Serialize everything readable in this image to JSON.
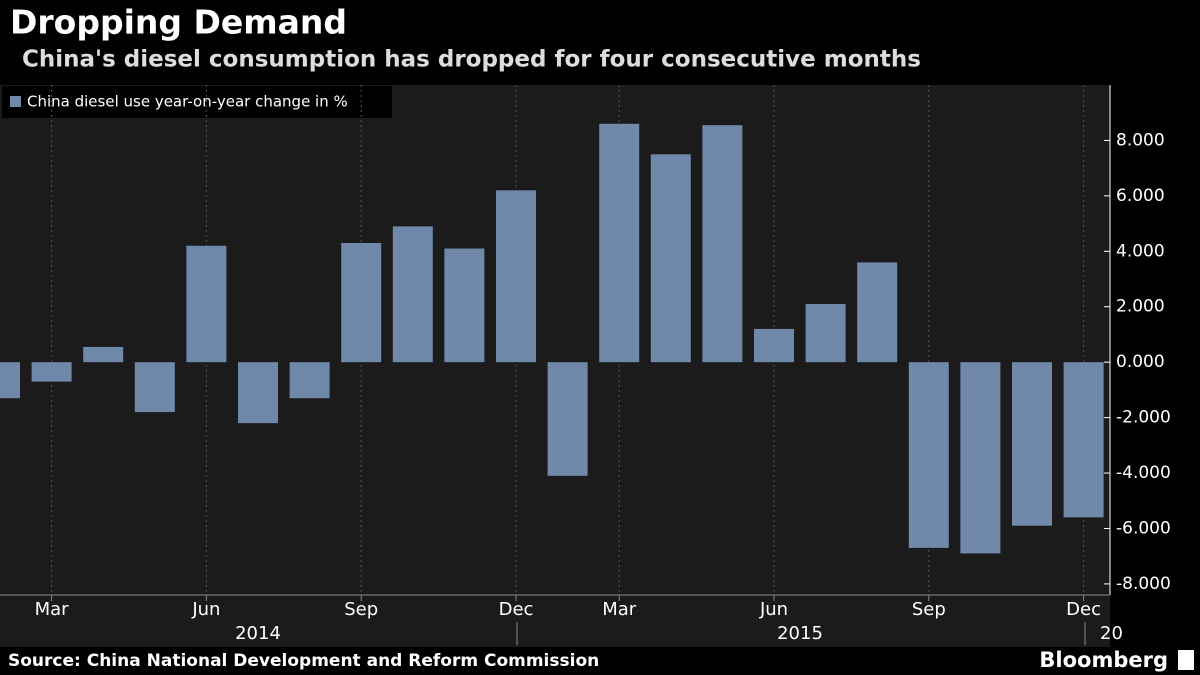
{
  "chart_data": {
    "type": "bar",
    "title": "Dropping Demand",
    "subtitle": "China's diesel consumption has dropped for four consecutive months",
    "source": "Source: China National Development and Reform Commission",
    "brand": "Bloomberg",
    "legend": "China diesel use year-on-year change in %",
    "color": "#7089ab",
    "categories": [
      null,
      "Mar",
      null,
      null,
      "Jun",
      null,
      null,
      "Sep",
      null,
      null,
      "Dec",
      null,
      "Mar",
      null,
      null,
      "Jun",
      null,
      null,
      "Sep",
      null,
      null,
      "Dec"
    ],
    "year_labels": [
      "2014",
      "2015",
      "20"
    ],
    "values": [
      -1.3,
      -0.7,
      0.55,
      -1.8,
      4.2,
      -2.2,
      -1.3,
      4.3,
      4.9,
      4.1,
      6.2,
      -4.1,
      8.6,
      7.5,
      8.55,
      1.2,
      2.1,
      3.6,
      -6.7,
      -6.9,
      -5.9,
      -5.6
    ],
    "ylim": [
      -8.4,
      10
    ],
    "yticks": [
      {
        "value": -8,
        "label": "-8.000"
      },
      {
        "value": -6,
        "label": "-6.000"
      },
      {
        "value": -4,
        "label": "-4.000"
      },
      {
        "value": -2,
        "label": "-2.000"
      },
      {
        "value": 0,
        "label": "0.000"
      },
      {
        "value": 2,
        "label": "2.000"
      },
      {
        "value": 4,
        "label": "4.000"
      },
      {
        "value": 6,
        "label": "6.000"
      },
      {
        "value": 8,
        "label": "8.000"
      }
    ]
  }
}
